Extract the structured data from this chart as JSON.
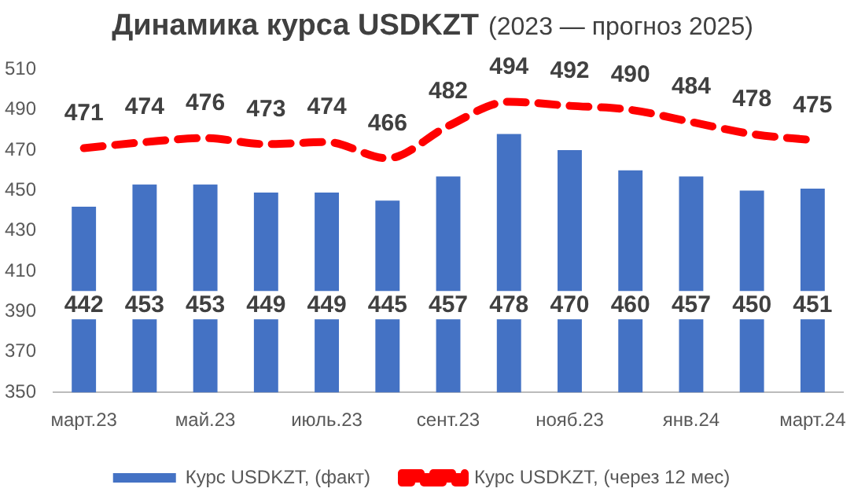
{
  "chart_data": {
    "type": "bar",
    "title": "Динамика курса USDKZT",
    "subtitle": "(2023 — прогноз 2025)",
    "categories": [
      "март.23",
      null,
      "май.23",
      null,
      "июль.23",
      null,
      "сент.23",
      null,
      "нояб.23",
      null,
      "янв.24",
      null,
      "март.24"
    ],
    "series": [
      {
        "name": "Курс USDKZT, (факт)",
        "color": "#4472c4",
        "values": [
          442,
          453,
          453,
          449,
          449,
          445,
          457,
          478,
          470,
          460,
          457,
          450,
          451
        ]
      },
      {
        "name": "Курс USDKZT, (через 12 мес)",
        "type": "line",
        "color": "#ff0000",
        "line_style": "dashed",
        "marker": "none",
        "values": [
          471,
          474,
          476,
          473,
          474,
          466,
          482,
          494,
          492,
          490,
          484,
          478,
          475
        ]
      }
    ],
    "ylim": [
      350,
      510
    ],
    "yticks": [
      350,
      370,
      390,
      410,
      430,
      450,
      470,
      490,
      510
    ],
    "grid": false,
    "legend": "bottom",
    "data_labels": true
  }
}
